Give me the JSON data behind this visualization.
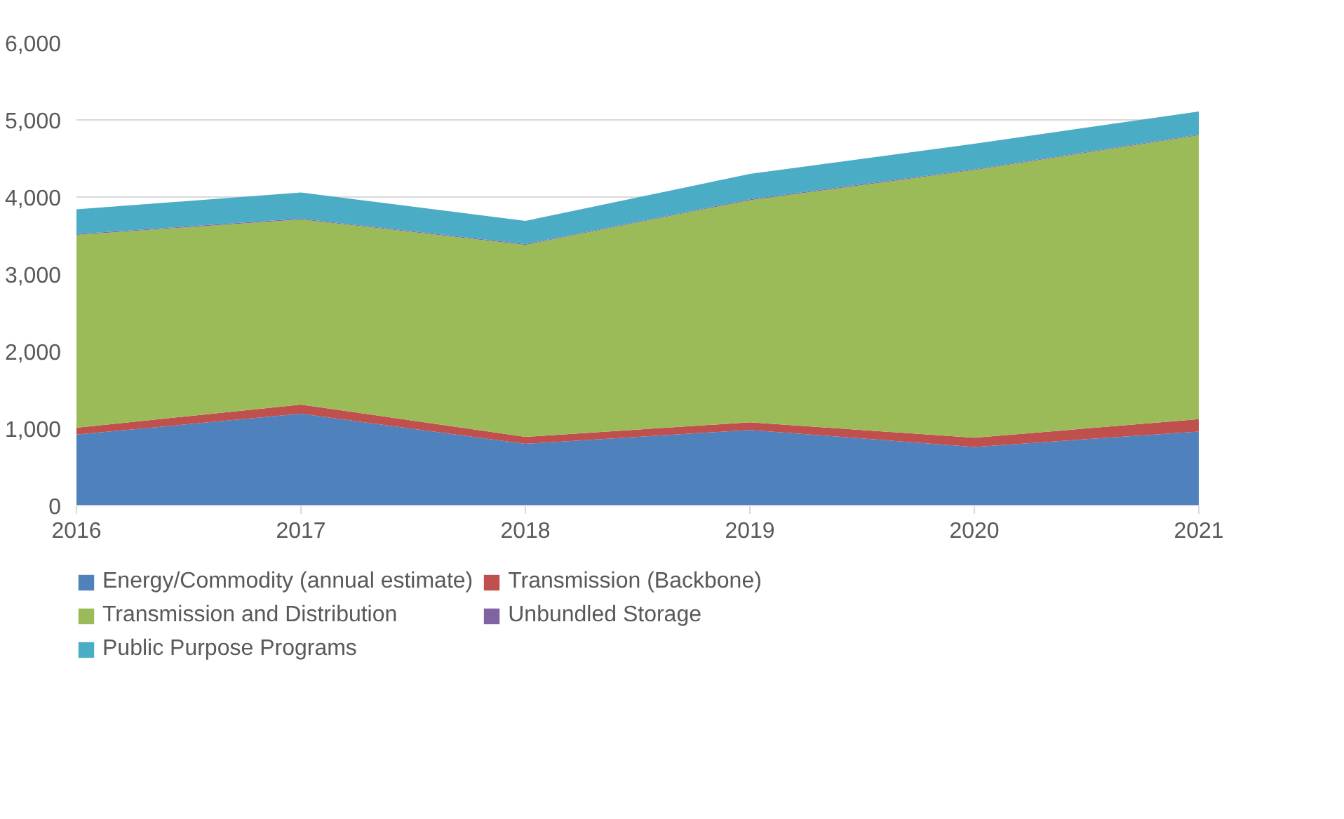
{
  "chart_data": {
    "type": "area",
    "stacked": true,
    "x": [
      2016,
      2017,
      2018,
      2019,
      2020,
      2021
    ],
    "xlim": [
      2016,
      2021
    ],
    "xticks": [
      2016,
      2017,
      2018,
      2019,
      2020,
      2021
    ],
    "ylim": [
      0,
      6000
    ],
    "yticks": [
      {
        "value": 0,
        "label": "0"
      },
      {
        "value": 1000,
        "label": "1,000"
      },
      {
        "value": 2000,
        "label": "2,000"
      },
      {
        "value": 3000,
        "label": "3,000"
      },
      {
        "value": 4000,
        "label": "4,000"
      },
      {
        "value": 5000,
        "label": "5,000"
      },
      {
        "value": 6000,
        "label": "6,000"
      }
    ],
    "grid": "y",
    "legend": "bottom",
    "series": [
      {
        "name": "Energy/Commodity (annual estimate)",
        "color": "#4f81bd",
        "values": [
          920,
          1190,
          800,
          980,
          760,
          960
        ]
      },
      {
        "name": "Transmission (Backbone)",
        "color": "#c0504d",
        "values": [
          90,
          120,
          90,
          100,
          120,
          160
        ]
      },
      {
        "name": "Transmission and Distribution",
        "color": "#9bbb59",
        "values": [
          2500,
          2400,
          2490,
          2880,
          3470,
          3680
        ]
      },
      {
        "name": "Unbundled Storage",
        "color": "#8064a2",
        "values": [
          10,
          10,
          10,
          10,
          10,
          10
        ]
      },
      {
        "name": "Public Purpose Programs",
        "color": "#4bacc6",
        "values": [
          320,
          340,
          300,
          330,
          330,
          300
        ]
      }
    ]
  }
}
